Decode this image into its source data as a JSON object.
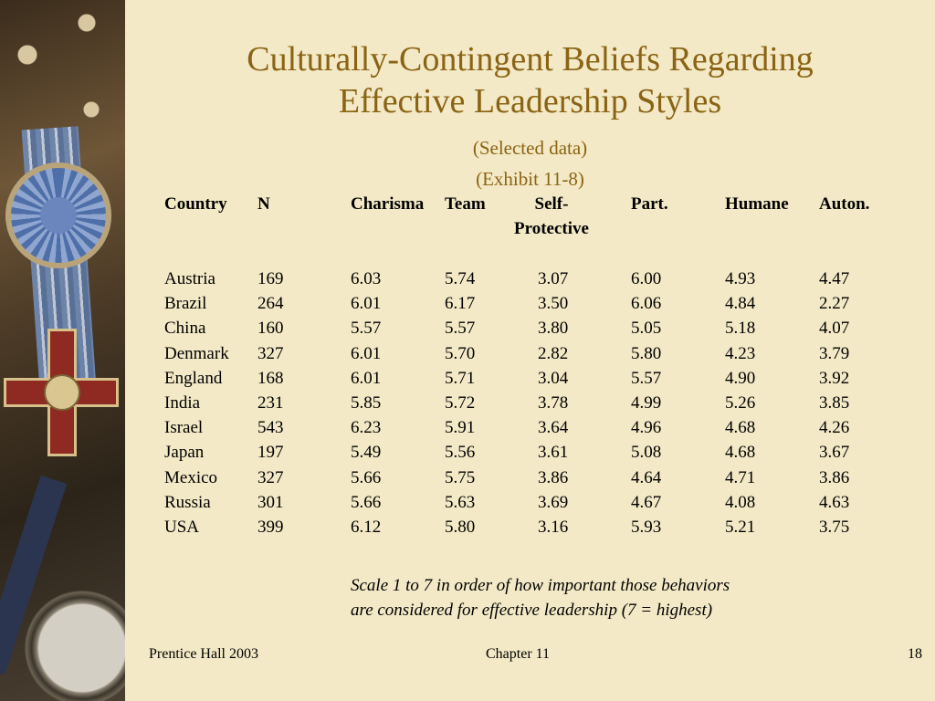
{
  "title_line1": "Culturally-Contingent Beliefs Regarding",
  "title_line2": "Effective Leadership Styles",
  "subtitle_line1": "(Selected data)",
  "subtitle_line2": "(Exhibit 11-8)",
  "headers": {
    "country": "Country",
    "n": "N",
    "charisma": "Charisma",
    "team": "Team",
    "self_line1": "Self-",
    "self_line2": "Protective",
    "part": "Part.",
    "humane": "Humane",
    "auton": "Auton."
  },
  "rows": [
    [
      "Austria",
      "169",
      "6.03",
      "5.74",
      "3.07",
      "6.00",
      "4.93",
      "4.47"
    ],
    [
      "Brazil",
      "264",
      "6.01",
      "6.17",
      "3.50",
      "6.06",
      "4.84",
      "2.27"
    ],
    [
      "China",
      "160",
      "5.57",
      "5.57",
      "3.80",
      "5.05",
      "5.18",
      "4.07"
    ],
    [
      "Denmark",
      "327",
      "6.01",
      "5.70",
      "2.82",
      "5.80",
      "4.23",
      "3.79"
    ],
    [
      "England",
      "168",
      "6.01",
      "5.71",
      "3.04",
      "5.57",
      "4.90",
      "3.92"
    ],
    [
      "India",
      "231",
      "5.85",
      "5.72",
      "3.78",
      "4.99",
      "5.26",
      "3.85"
    ],
    [
      "Israel",
      "543",
      "6.23",
      "5.91",
      "3.64",
      "4.96",
      "4.68",
      "4.26"
    ],
    [
      "Japan",
      "197",
      "5.49",
      "5.56",
      "3.61",
      "5.08",
      "4.68",
      "3.67"
    ],
    [
      "Mexico",
      "327",
      "5.66",
      "5.75",
      "3.86",
      "4.64",
      "4.71",
      "3.86"
    ],
    [
      "Russia",
      "301",
      "5.66",
      "5.63",
      "3.69",
      "4.67",
      "4.08",
      "4.63"
    ],
    [
      "USA",
      "399",
      "6.12",
      "5.80",
      "3.16",
      "5.93",
      "5.21",
      "3.75"
    ]
  ],
  "note_line1": "Scale 1 to 7 in order of how important those behaviors",
  "note_line2": "are considered for effective leadership (7 = highest)",
  "footer": {
    "left": "Prentice Hall 2003",
    "center": "Chapter 11",
    "right": "18"
  }
}
